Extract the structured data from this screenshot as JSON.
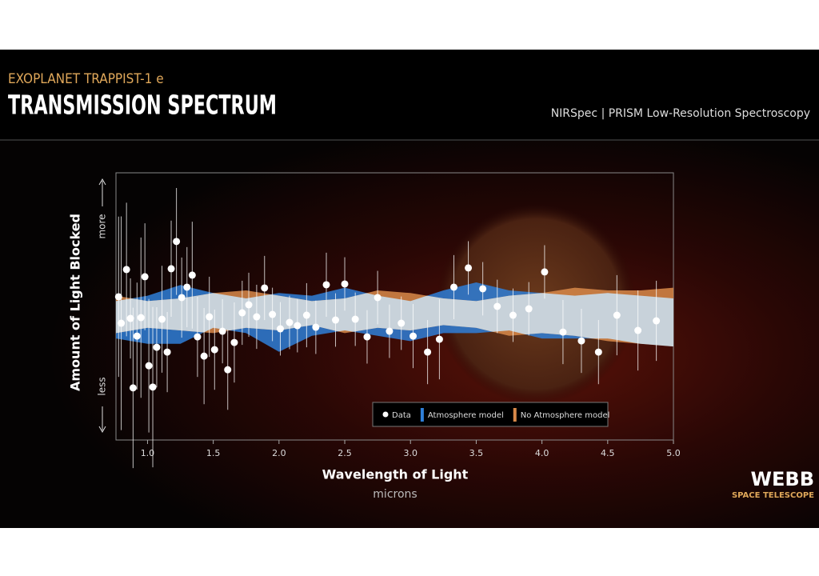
{
  "chart_data": {
    "type": "scatter",
    "subtitle": "EXOPLANET TRAPPIST-1 e",
    "title": "TRANSMISSION SPECTRUM",
    "note": "NIRSpec | PRISM Low-Resolution Spectroscopy",
    "x_label": "Wavelength of Light",
    "x_unit": "microns",
    "y_label": "Amount of Light Blocked",
    "y_more": "more",
    "y_less": "less",
    "xlim": [
      0.76,
      5.0
    ],
    "ylim": [
      0,
      100
    ],
    "xticks": [
      {
        "value": 1,
        "label": "1.0"
      },
      1.5,
      {
        "value": 2,
        "label": "2.0"
      },
      2.5,
      {
        "value": 3,
        "label": "3.0"
      },
      3.5,
      {
        "value": 4,
        "label": "4.0"
      },
      4.5,
      {
        "value": 5,
        "label": "5.0"
      }
    ],
    "series": [
      {
        "name": "Data",
        "color": "#ffffff",
        "x": [
          0.78,
          0.8,
          0.84,
          0.87,
          0.89,
          0.92,
          0.95,
          0.98,
          1.01,
          1.04,
          1.07,
          1.11,
          1.15,
          1.18,
          1.22,
          1.26,
          1.3,
          1.34,
          1.38,
          1.43,
          1.47,
          1.51,
          1.57,
          1.61,
          1.66,
          1.72,
          1.77,
          1.83,
          1.89,
          1.95,
          2.01,
          2.08,
          2.14,
          2.21,
          2.28,
          2.36,
          2.43,
          2.5,
          2.58,
          2.67,
          2.75,
          2.84,
          2.93,
          3.02,
          3.13,
          3.22,
          3.33,
          3.44,
          3.55,
          3.66,
          3.78,
          3.9,
          4.02,
          4.16,
          4.3,
          4.43,
          4.57,
          4.73,
          4.87
        ],
        "values": [
          53.6,
          43.7,
          63.8,
          45.5,
          19.5,
          38.9,
          45.8,
          61.1,
          27.8,
          19.8,
          34.7,
          45.2,
          32.9,
          64.1,
          74.3,
          53.3,
          57.2,
          61.7,
          38.6,
          31.4,
          46.1,
          33.8,
          40.7,
          26.3,
          36.5,
          47.6,
          50.6,
          46.1,
          56.9,
          47.0,
          41.6,
          44.0,
          42.8,
          46.7,
          42.2,
          58.1,
          44.9,
          58.4,
          45.2,
          38.6,
          53.3,
          40.7,
          43.7,
          38.9,
          32.9,
          37.7,
          57.2,
          64.4,
          56.6,
          50.0,
          46.7,
          49.1,
          62.9,
          40.4,
          37.1,
          32.9,
          46.7,
          41.0,
          44.6
        ],
        "errors": [
          30,
          40,
          25,
          15,
          30,
          20,
          30,
          20,
          25,
          30,
          15,
          20,
          15,
          18,
          20,
          15,
          15,
          20,
          15,
          18,
          15,
          15,
          12,
          15,
          15,
          12,
          12,
          12,
          12,
          10,
          10,
          10,
          10,
          12,
          10,
          12,
          10,
          10,
          10,
          10,
          10,
          10,
          10,
          12,
          12,
          15,
          12,
          10,
          10,
          10,
          10,
          10,
          10,
          12,
          12,
          12,
          15,
          15,
          15
        ]
      }
    ],
    "models": [
      {
        "name": "Atmosphere model",
        "color": "#2f7fd8",
        "x": [
          0.76,
          1.0,
          1.25,
          1.5,
          1.75,
          2.0,
          2.25,
          2.5,
          2.75,
          3.0,
          3.25,
          3.5,
          3.75,
          4.0,
          4.25,
          4.5,
          4.75,
          5.0
        ],
        "low": [
          38,
          36,
          36,
          42,
          40,
          33,
          39,
          41,
          39,
          37,
          40,
          40,
          41,
          38,
          38,
          38,
          36,
          35
        ],
        "high": [
          52,
          54,
          58,
          55,
          53,
          55,
          54,
          57,
          54,
          52,
          56,
          59,
          56,
          55,
          54,
          55,
          54,
          53
        ]
      },
      {
        "name": "No Atmosphere model",
        "color": "#d98a4a",
        "x": [
          0.76,
          1.0,
          1.25,
          1.5,
          1.75,
          2.0,
          2.25,
          2.5,
          2.75,
          3.0,
          3.25,
          3.5,
          3.75,
          4.0,
          4.25,
          4.5,
          4.75,
          5.0
        ],
        "low": [
          40,
          42,
          41,
          40,
          42,
          41,
          43,
          40,
          42,
          41,
          43,
          42,
          39,
          40,
          39,
          37,
          36,
          35
        ],
        "high": [
          54,
          52,
          53,
          55,
          56,
          54,
          52,
          53,
          56,
          55,
          53,
          52,
          54,
          55,
          57,
          56,
          56,
          57
        ]
      }
    ]
  },
  "logo": {
    "name": "WEBB",
    "tagline": "SPACE TELESCOPE"
  }
}
